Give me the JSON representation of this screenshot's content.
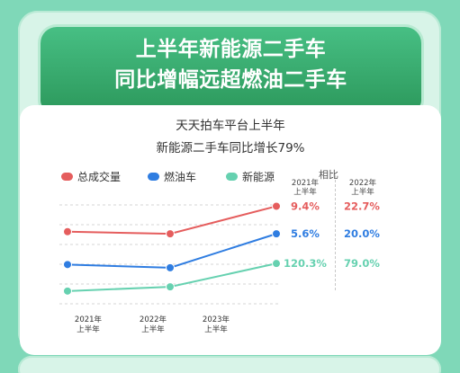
{
  "banner": {
    "line1": "上半年新能源二手车",
    "line2": "同比增幅远超燃油二手车"
  },
  "card": {
    "title_line1": "天天拍车平台上半年",
    "title_line2": "新能源二手车同比增长79%"
  },
  "compare_table": {
    "title": "相比",
    "col1": {
      "year": "2021年",
      "half": "上半年"
    },
    "col2": {
      "year": "2022年",
      "half": "上半年"
    },
    "rows": [
      {
        "series": "总成交量",
        "col1": "9.4%",
        "col2": "22.7%"
      },
      {
        "series": "燃油车",
        "col1": "5.6%",
        "col2": "20.0%"
      },
      {
        "series": "新能源",
        "col1": "120.3%",
        "col2": "79.0%"
      }
    ]
  },
  "chart_data": {
    "type": "line",
    "categories": [
      {
        "year": "2021年",
        "half": "上半年"
      },
      {
        "year": "2022年",
        "half": "上半年"
      },
      {
        "year": "2023年",
        "half": "上半年"
      }
    ],
    "series": [
      {
        "name": "总成交量",
        "color": "#e55d5d",
        "values": [
          0.68,
          0.66,
          0.92
        ]
      },
      {
        "name": "燃油车",
        "color": "#2f7de1",
        "values": [
          0.37,
          0.34,
          0.66
        ]
      },
      {
        "name": "新能源",
        "color": "#66d1b0",
        "values": [
          0.12,
          0.16,
          0.38
        ]
      }
    ],
    "y_axis": "unlabeled",
    "grid": "dashed horizontal"
  }
}
